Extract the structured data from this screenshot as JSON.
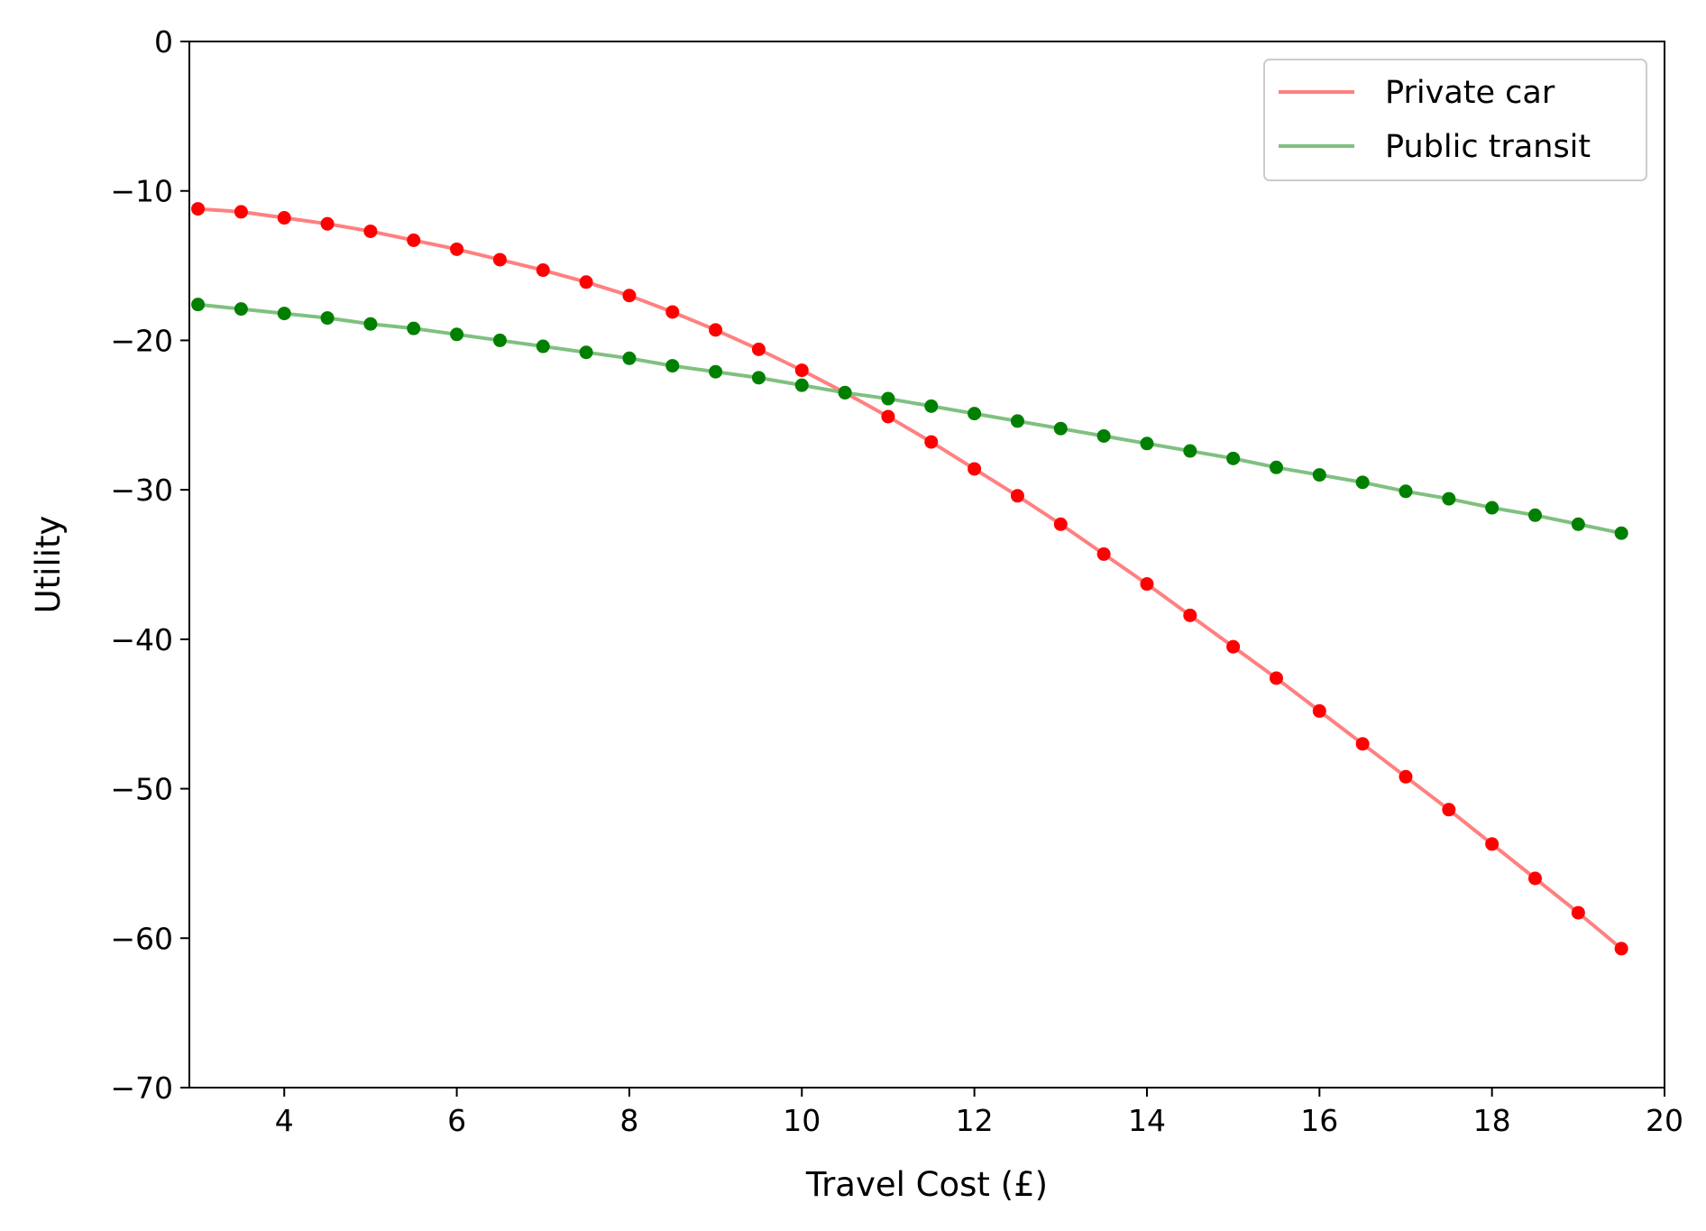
{
  "chart_data": {
    "type": "line",
    "title": "",
    "xlabel": "Travel Cost (£)",
    "ylabel": "Utility",
    "xlim": [
      2.9,
      20
    ],
    "ylim": [
      -70,
      0
    ],
    "xticks": [
      4,
      6,
      8,
      10,
      12,
      14,
      16,
      18,
      20
    ],
    "yticks": [
      0,
      -10,
      -20,
      -30,
      -40,
      -50,
      -60,
      -70
    ],
    "xtick_labels": [
      "4",
      "6",
      "8",
      "10",
      "12",
      "14",
      "16",
      "18",
      "20"
    ],
    "ytick_labels": [
      "0",
      "−10",
      "−20",
      "−30",
      "−40",
      "−50",
      "−60",
      "−70"
    ],
    "grid": false,
    "legend_position": "top-right",
    "x": [
      3.0,
      3.5,
      4.0,
      4.5,
      5.0,
      5.5,
      6.0,
      6.5,
      7.0,
      7.5,
      8.0,
      8.5,
      9.0,
      9.5,
      10.0,
      10.5,
      11.0,
      11.5,
      12.0,
      12.5,
      13.0,
      13.5,
      14.0,
      14.5,
      15.0,
      15.5,
      16.0,
      16.5,
      17.0,
      17.5,
      18.0,
      18.5,
      19.0,
      19.5
    ],
    "series": [
      {
        "name": "Private car",
        "line_color": "#ff8080",
        "marker_color": "#ff0000",
        "values": [
          -11.2,
          -11.4,
          -11.8,
          -12.2,
          -12.7,
          -13.3,
          -13.9,
          -14.6,
          -15.3,
          -16.1,
          -17.0,
          -18.1,
          -19.3,
          -20.6,
          -22.0,
          -23.5,
          -25.1,
          -26.8,
          -28.6,
          -30.4,
          -32.3,
          -34.3,
          -36.3,
          -38.4,
          -40.5,
          -42.6,
          -44.8,
          -47.0,
          -49.2,
          -51.4,
          -53.7,
          -56.0,
          -58.3,
          -60.7
        ]
      },
      {
        "name": "Public transit",
        "line_color": "#80c080",
        "marker_color": "#008000",
        "values": [
          -17.6,
          -17.9,
          -18.2,
          -18.5,
          -18.9,
          -19.2,
          -19.6,
          -20.0,
          -20.4,
          -20.8,
          -21.2,
          -21.7,
          -22.1,
          -22.5,
          -23.0,
          -23.5,
          -23.9,
          -24.4,
          -24.9,
          -25.4,
          -25.9,
          -26.4,
          -26.9,
          -27.4,
          -27.9,
          -28.5,
          -29.0,
          -29.5,
          -30.1,
          -30.6,
          -31.2,
          -31.7,
          -32.3,
          -32.9
        ]
      }
    ]
  }
}
